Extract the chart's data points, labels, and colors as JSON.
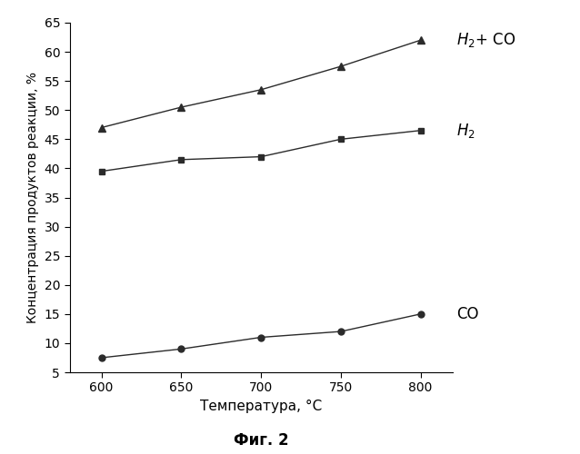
{
  "x": [
    600,
    650,
    700,
    750,
    800
  ],
  "H2_CO": [
    47.0,
    50.5,
    53.5,
    57.5,
    62.0
  ],
  "H2": [
    39.5,
    41.5,
    42.0,
    45.0,
    46.5
  ],
  "CO": [
    7.5,
    9.0,
    11.0,
    12.0,
    15.0
  ],
  "xlabel": "Температура, °C",
  "ylabel": "Концентрация продуктов реакции, %",
  "caption": "Фиг. 2",
  "ylim": [
    5,
    65
  ],
  "yticks": [
    5,
    10,
    15,
    20,
    25,
    30,
    35,
    40,
    45,
    50,
    55,
    60,
    65
  ],
  "xlim": [
    580,
    820
  ],
  "xticks": [
    600,
    650,
    700,
    750,
    800
  ],
  "line_color": "#2b2b2b",
  "bg_color": "#ffffff",
  "tick_fontsize": 10,
  "label_fontsize": 11,
  "ylabel_fontsize": 10
}
